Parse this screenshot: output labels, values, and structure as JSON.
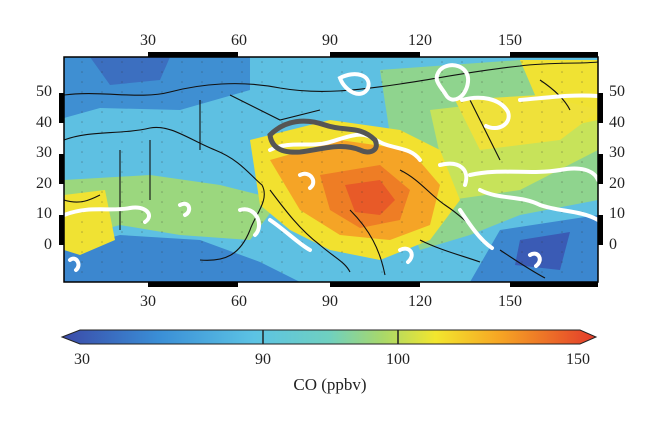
{
  "map": {
    "lon_ticks_top": [
      "30",
      "60",
      "90",
      "120",
      "150"
    ],
    "lon_ticks_bottom": [
      "30",
      "60",
      "90",
      "120",
      "150"
    ],
    "lat_ticks_left": [
      "50",
      "40",
      "30",
      "20",
      "10",
      "0"
    ],
    "lat_ticks_right": [
      "50",
      "40",
      "30",
      "20",
      "10",
      "0"
    ],
    "colors": {
      "ocean_low": "#2f8fd0",
      "mid": "#5fc3e0",
      "green": "#8fd08a",
      "yellow": "#f2e531",
      "orange": "#f5a623",
      "red": "#e8402a",
      "contour_white": "#ffffff",
      "contour_grey": "#555555"
    }
  },
  "colorbar": {
    "min_label": "30",
    "label_90": "90",
    "label_100": "100",
    "max_label": "150",
    "title": "CO (ppbv)"
  }
}
